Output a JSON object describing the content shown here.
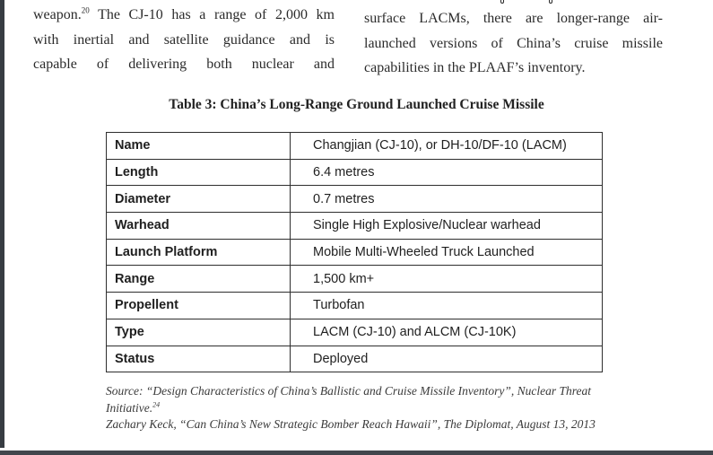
{
  "intro": {
    "left_column": {
      "line1_pre": "weapon.",
      "line1_sup": "20",
      "line1_post": " The CJ-10 has a range of 2,000 km",
      "line2": "with inertial and satellite guidance and is",
      "line3": "capable of delivering both nuclear and"
    },
    "right_column": {
      "line1": "surface LACMs, there are longer-range air-",
      "line2": "launched versions of China’s cruise missile",
      "line3": "capabilities in the PLAAF’s inventory."
    }
  },
  "table": {
    "title": "Table 3: China’s Long-Range Ground Launched Cruise Missile",
    "rows": [
      {
        "label": "Name",
        "value": "Changjian (CJ-10), or DH-10/DF-10 (LACM)"
      },
      {
        "label": "Length",
        "value": "6.4 metres"
      },
      {
        "label": "Diameter",
        "value": "0.7 metres"
      },
      {
        "label": "Warhead",
        "value": "Single High Explosive/Nuclear warhead"
      },
      {
        "label": "Launch Platform",
        "value": "Mobile Multi-Wheeled Truck Launched"
      },
      {
        "label": "Range",
        "value": "1,500 km+"
      },
      {
        "label": "Propellent",
        "value": "Turbofan"
      },
      {
        "label": "Type",
        "value": "LACM (CJ-10) and ALCM (CJ-10K)"
      },
      {
        "label": "Status",
        "value": "Deployed"
      }
    ]
  },
  "source": {
    "line1_text": "Source: “Design Characteristics of China’s Ballistic and Cruise Missile Inventory”, Nuclear Threat Initiative.",
    "line1_sup": "24",
    "line2_text": "Zachary Keck, “Can China’s New Strategic Bomber Reach Hawaii”, The Diplomat, August 13, 2013"
  },
  "colors": {
    "page_edge_left": "#373c42",
    "page_edge_bottom": "#42474d",
    "text": "#262626",
    "table_border": "#2e2e2e"
  }
}
